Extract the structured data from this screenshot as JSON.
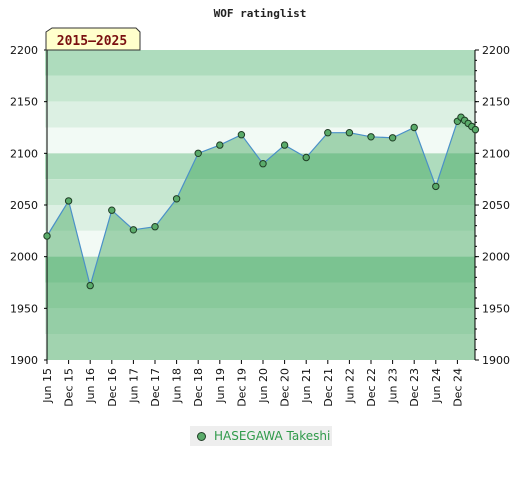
{
  "chart_data": {
    "type": "area",
    "title": "WOF ratinglist",
    "period_label": "2015–2025",
    "ylim": [
      1900,
      2200
    ],
    "y_ticks": [
      1900,
      1950,
      2000,
      2050,
      2100,
      2150,
      2200
    ],
    "x_ticks": [
      "Jun 15",
      "Dec 15",
      "Jun 16",
      "Dec 16",
      "Jun 17",
      "Dec 17",
      "Jun 18",
      "Dec 18",
      "Jun 19",
      "Dec 19",
      "Jun 20",
      "Dec 20",
      "Jun 21",
      "Dec 21",
      "Jun 22",
      "Dec 22",
      "Jun 23",
      "Dec 23",
      "Jun 24",
      "Dec 24"
    ],
    "grid": true,
    "legend_position": "bottom-center",
    "series": [
      {
        "name": "HASEGAWA Takeshi",
        "color": "#5aab6a",
        "points": [
          [
            "2015-06",
            2020
          ],
          [
            "2015-12",
            2054
          ],
          [
            "2016-06",
            1972
          ],
          [
            "2016-12",
            2045
          ],
          [
            "2017-06",
            2026
          ],
          [
            "2017-12",
            2029
          ],
          [
            "2018-06",
            2056
          ],
          [
            "2018-12",
            2100
          ],
          [
            "2019-06",
            2108
          ],
          [
            "2019-12",
            2118
          ],
          [
            "2020-06",
            2090
          ],
          [
            "2020-12",
            2108
          ],
          [
            "2021-06",
            2096
          ],
          [
            "2021-12",
            2120
          ],
          [
            "2022-06",
            2120
          ],
          [
            "2022-12",
            2116
          ],
          [
            "2023-06",
            2115
          ],
          [
            "2023-12",
            2125
          ],
          [
            "2024-06",
            2068
          ],
          [
            "2024-12",
            2131
          ],
          [
            "2025-01",
            2135
          ],
          [
            "2025-02",
            2132
          ],
          [
            "2025-03",
            2129
          ],
          [
            "2025-04",
            2126
          ],
          [
            "2025-05",
            2123
          ]
        ]
      }
    ]
  }
}
